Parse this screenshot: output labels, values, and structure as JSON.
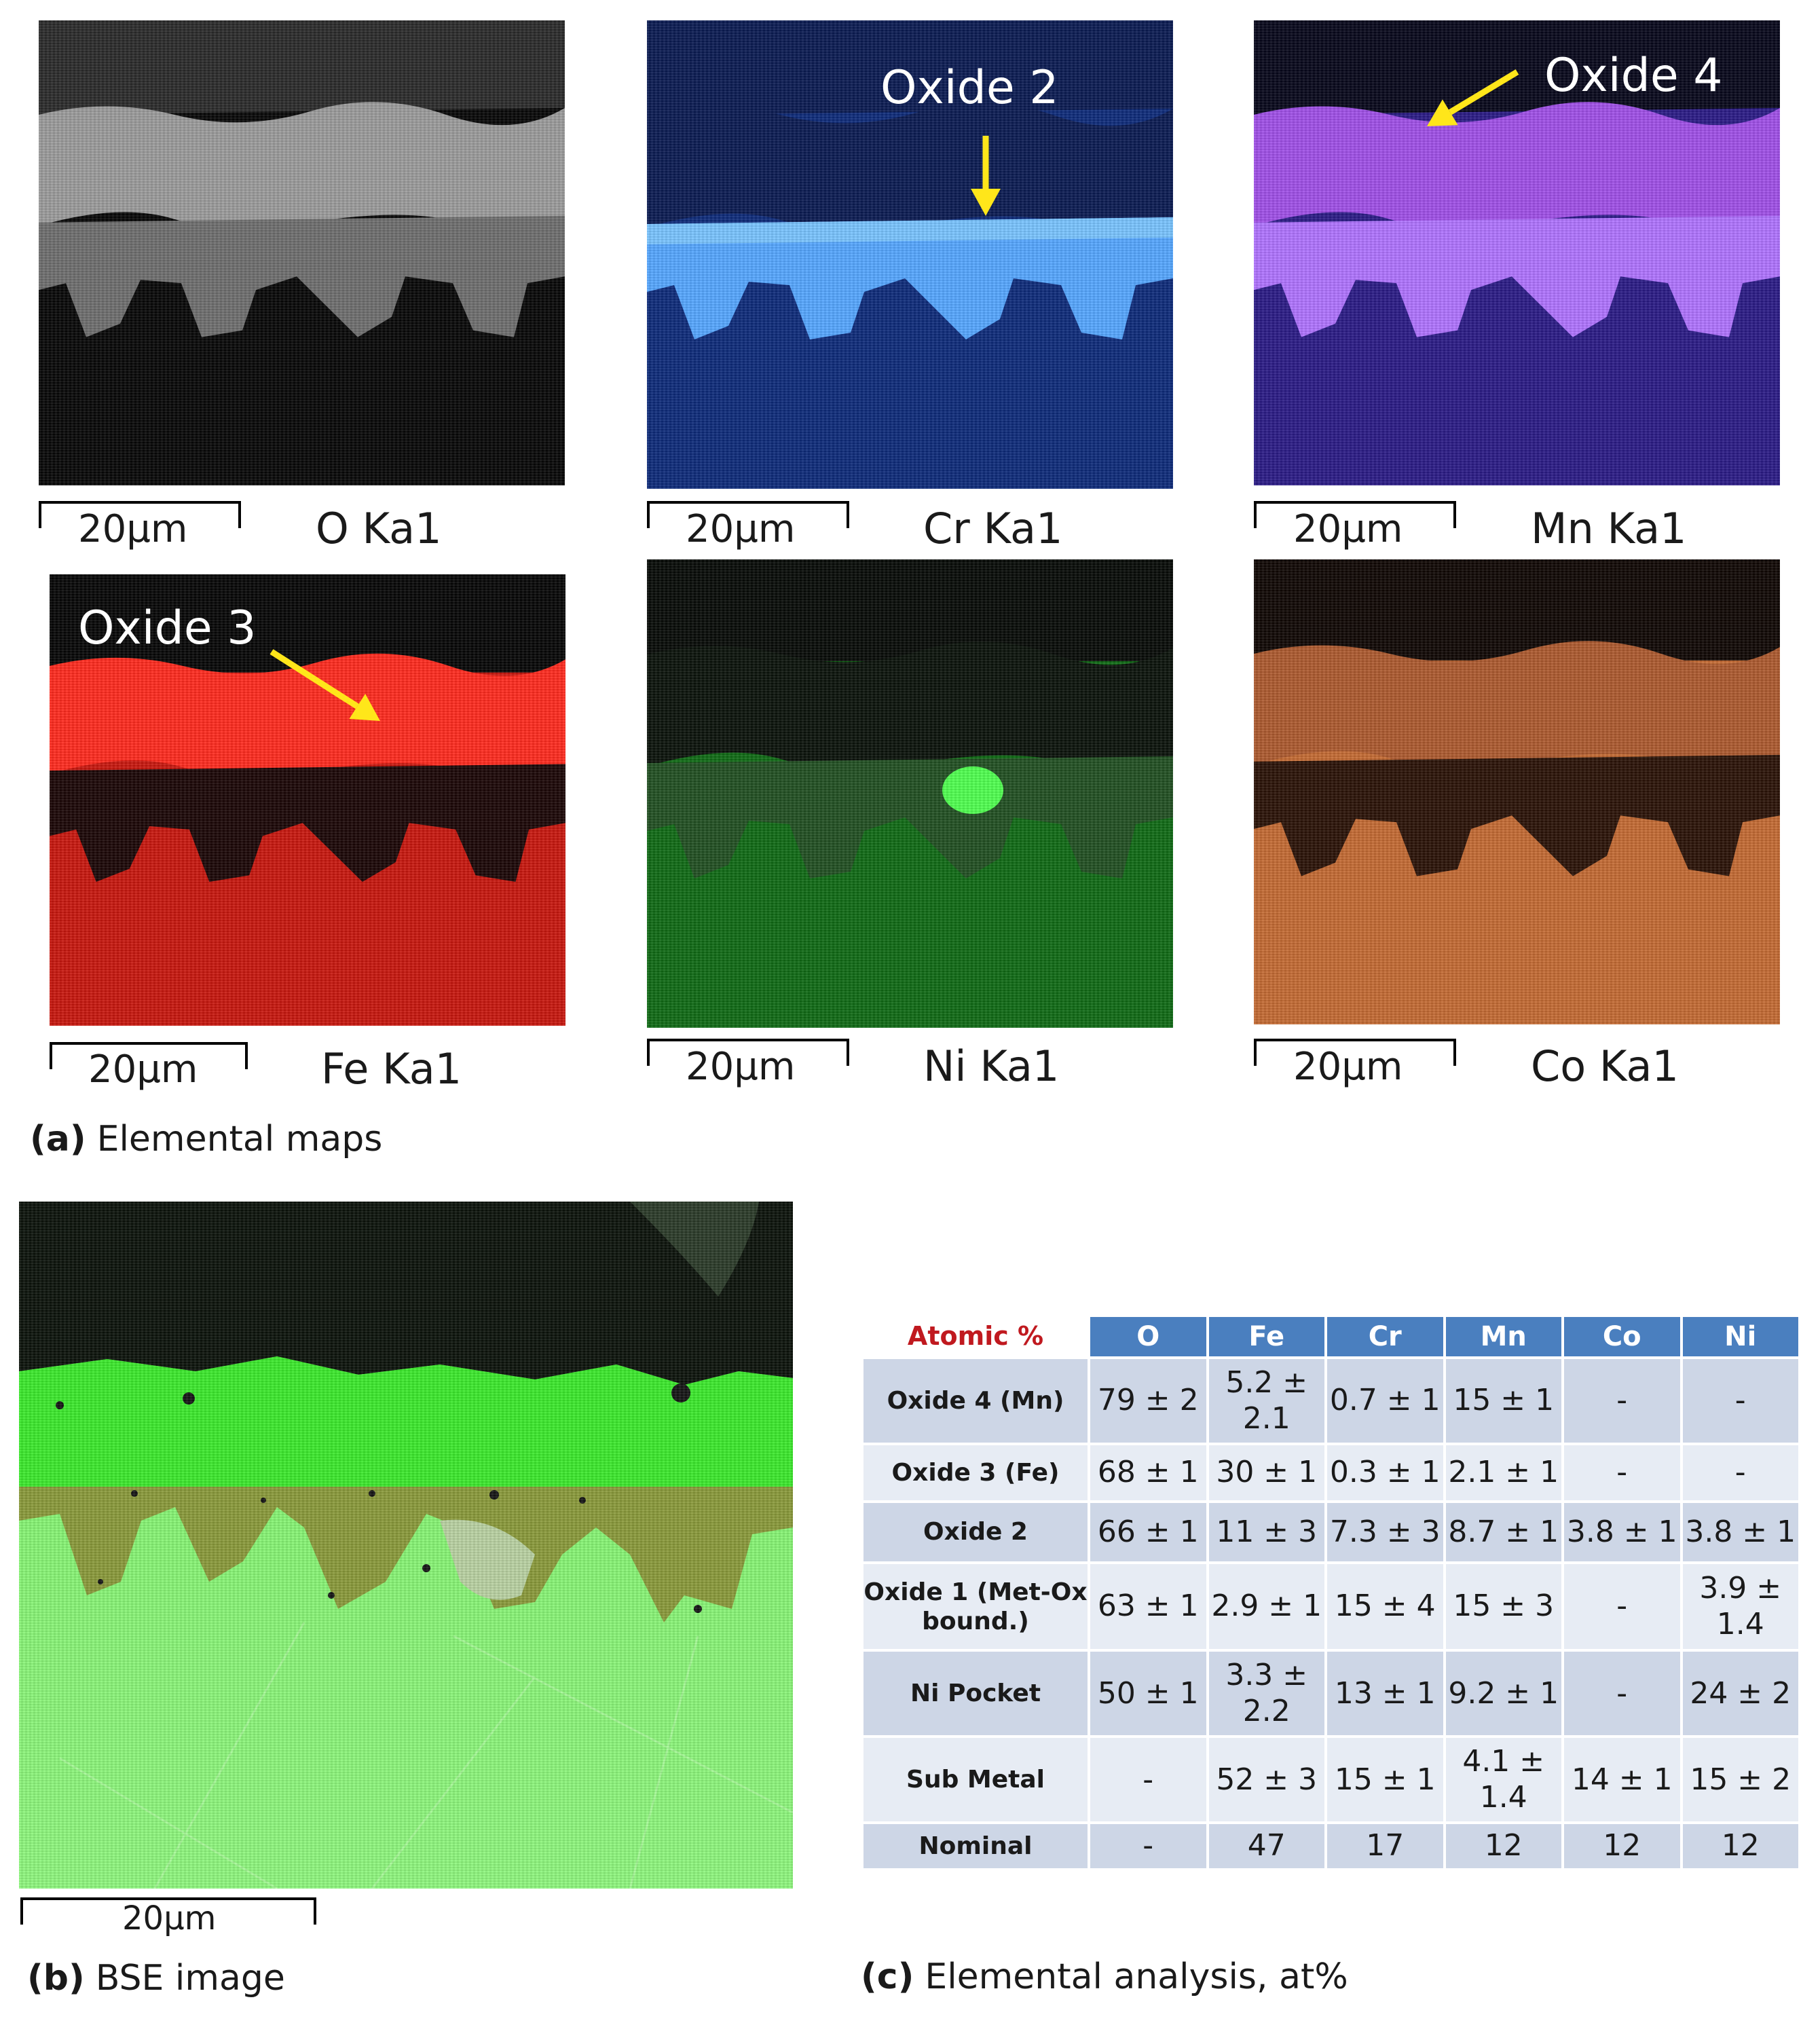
{
  "panel_a": {
    "caption_letter": "(a)",
    "caption_text": "Elemental maps",
    "maps": [
      {
        "element": "O Ka1",
        "scale": "20μm",
        "color": "#ffffff"
      },
      {
        "element": "Cr Ka1",
        "scale": "20μm",
        "color": "#3f7fff",
        "callout": "Oxide 2"
      },
      {
        "element": "Mn Ka1",
        "scale": "20μm",
        "color": "#a052ff",
        "callout": "Oxide 4"
      },
      {
        "element": "Fe Ka1",
        "scale": "20μm",
        "color": "#ff2a1e",
        "callout": "Oxide 3"
      },
      {
        "element": "Ni Ka1",
        "scale": "20μm",
        "color": "#35cf35"
      },
      {
        "element": "Co Ka1",
        "scale": "20μm",
        "color": "#ff9a5a"
      }
    ]
  },
  "panel_b": {
    "caption_letter": "(b)",
    "caption_text": "BSE image",
    "scale": "20μm"
  },
  "panel_c": {
    "caption_letter": "(c)",
    "caption_text": "Elemental analysis, at%",
    "table": {
      "corner": "Atomic %",
      "columns": [
        "O",
        "Fe",
        "Cr",
        "Mn",
        "Co",
        "Ni"
      ],
      "rows": [
        {
          "label": "Oxide 4 (Mn)",
          "cells": [
            "79 ± 2",
            "5.2 ± 2.1",
            "0.7 ± 1",
            "15 ± 1",
            "-",
            "-"
          ]
        },
        {
          "label": "Oxide 3 (Fe)",
          "cells": [
            "68 ± 1",
            "30 ± 1",
            "0.3 ± 1",
            "2.1 ± 1",
            "-",
            "-"
          ]
        },
        {
          "label": "Oxide 2",
          "cells": [
            "66 ± 1",
            "11 ± 3",
            "7.3 ± 3",
            "8.7 ± 1",
            "3.8 ± 1",
            "3.8 ± 1"
          ]
        },
        {
          "label": "Oxide 1 (Met-Ox bound.)",
          "cells": [
            "63 ± 1",
            "2.9 ± 1",
            "15 ± 4",
            "15 ± 3",
            "-",
            "3.9 ± 1.4"
          ]
        },
        {
          "label": "Ni Pocket",
          "cells": [
            "50 ± 1",
            "3.3 ± 2.2",
            "13 ± 1",
            "9.2 ± 1",
            "-",
            "24 ± 2"
          ]
        },
        {
          "label": "Sub Metal",
          "cells": [
            "-",
            "52 ± 3",
            "15 ± 1",
            "4.1 ± 1.4",
            "14 ± 1",
            "15 ± 2"
          ]
        },
        {
          "label": "Nominal",
          "cells": [
            "-",
            "47",
            "17",
            "12",
            "12",
            "12"
          ]
        }
      ]
    }
  }
}
